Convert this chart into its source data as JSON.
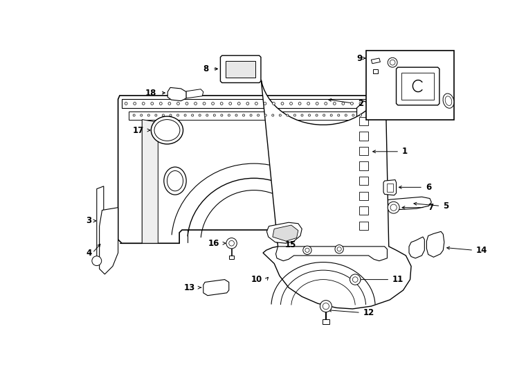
{
  "bg_color": "#ffffff",
  "line_color": "#000000",
  "figsize": [
    7.34,
    5.4
  ],
  "dpi": 100,
  "label_fontsize": 8.5
}
